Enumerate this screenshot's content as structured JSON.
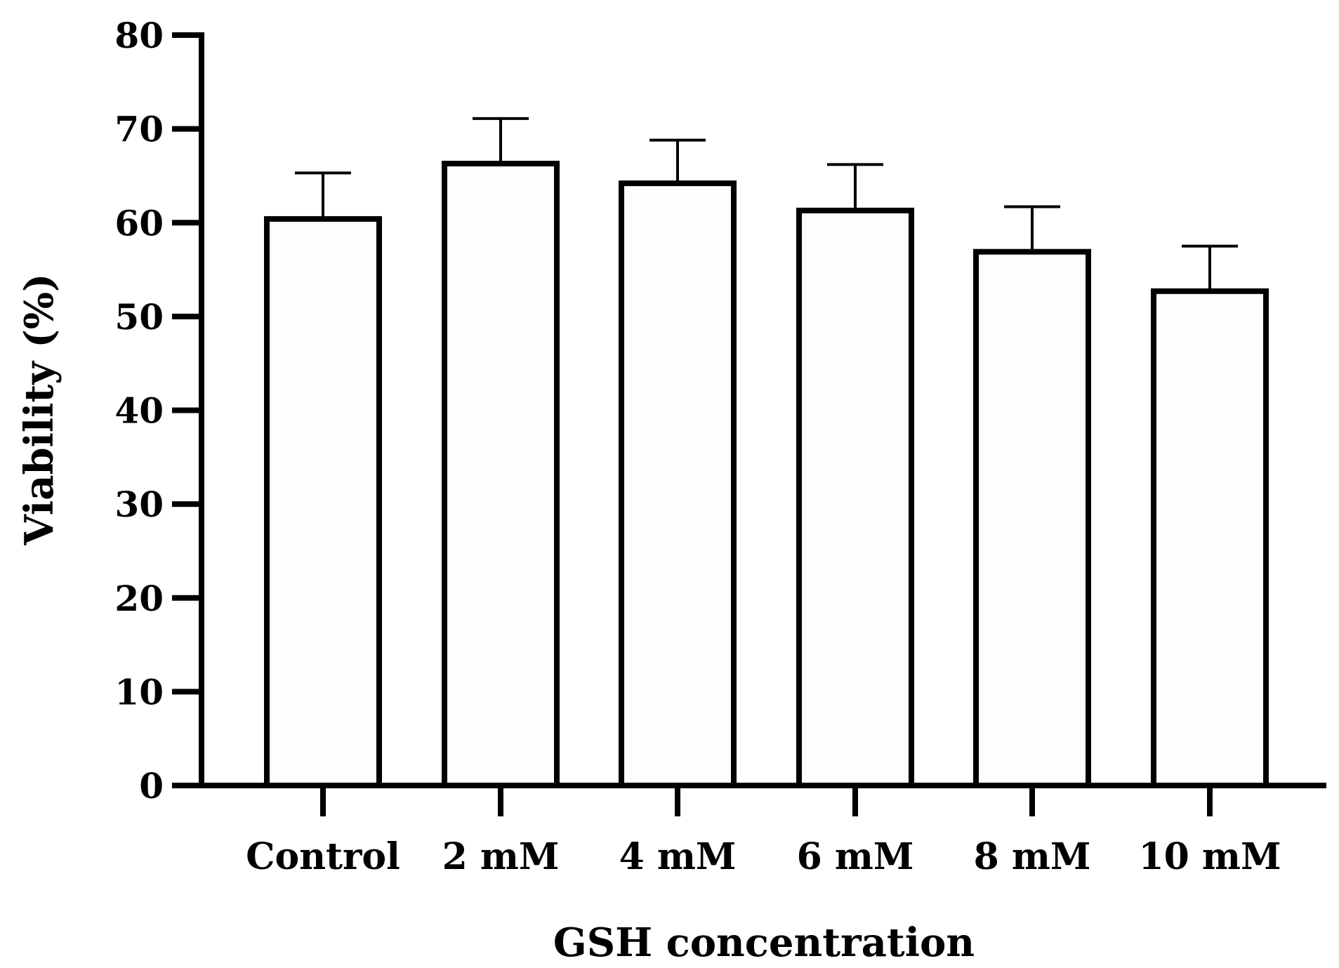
{
  "chart_data": {
    "type": "bar",
    "title": "",
    "xlabel": "GSH concentration",
    "ylabel": "Viability (%)",
    "categories": [
      "Control",
      "2 mM",
      "4 mM",
      "6 mM",
      "8 mM",
      "10 mM"
    ],
    "values": [
      60.4,
      66.3,
      64.2,
      61.3,
      56.9,
      52.7
    ],
    "errors": [
      4.9,
      4.8,
      4.6,
      4.9,
      4.8,
      4.8
    ],
    "ylim": [
      0,
      80
    ],
    "yticks": [
      "0",
      "10",
      "20",
      "30",
      "40",
      "50",
      "60",
      "70",
      "80"
    ],
    "grid": false,
    "legend": "none",
    "colors": {
      "bar_fill": "#fdfdfd",
      "stroke": "#000000"
    }
  }
}
